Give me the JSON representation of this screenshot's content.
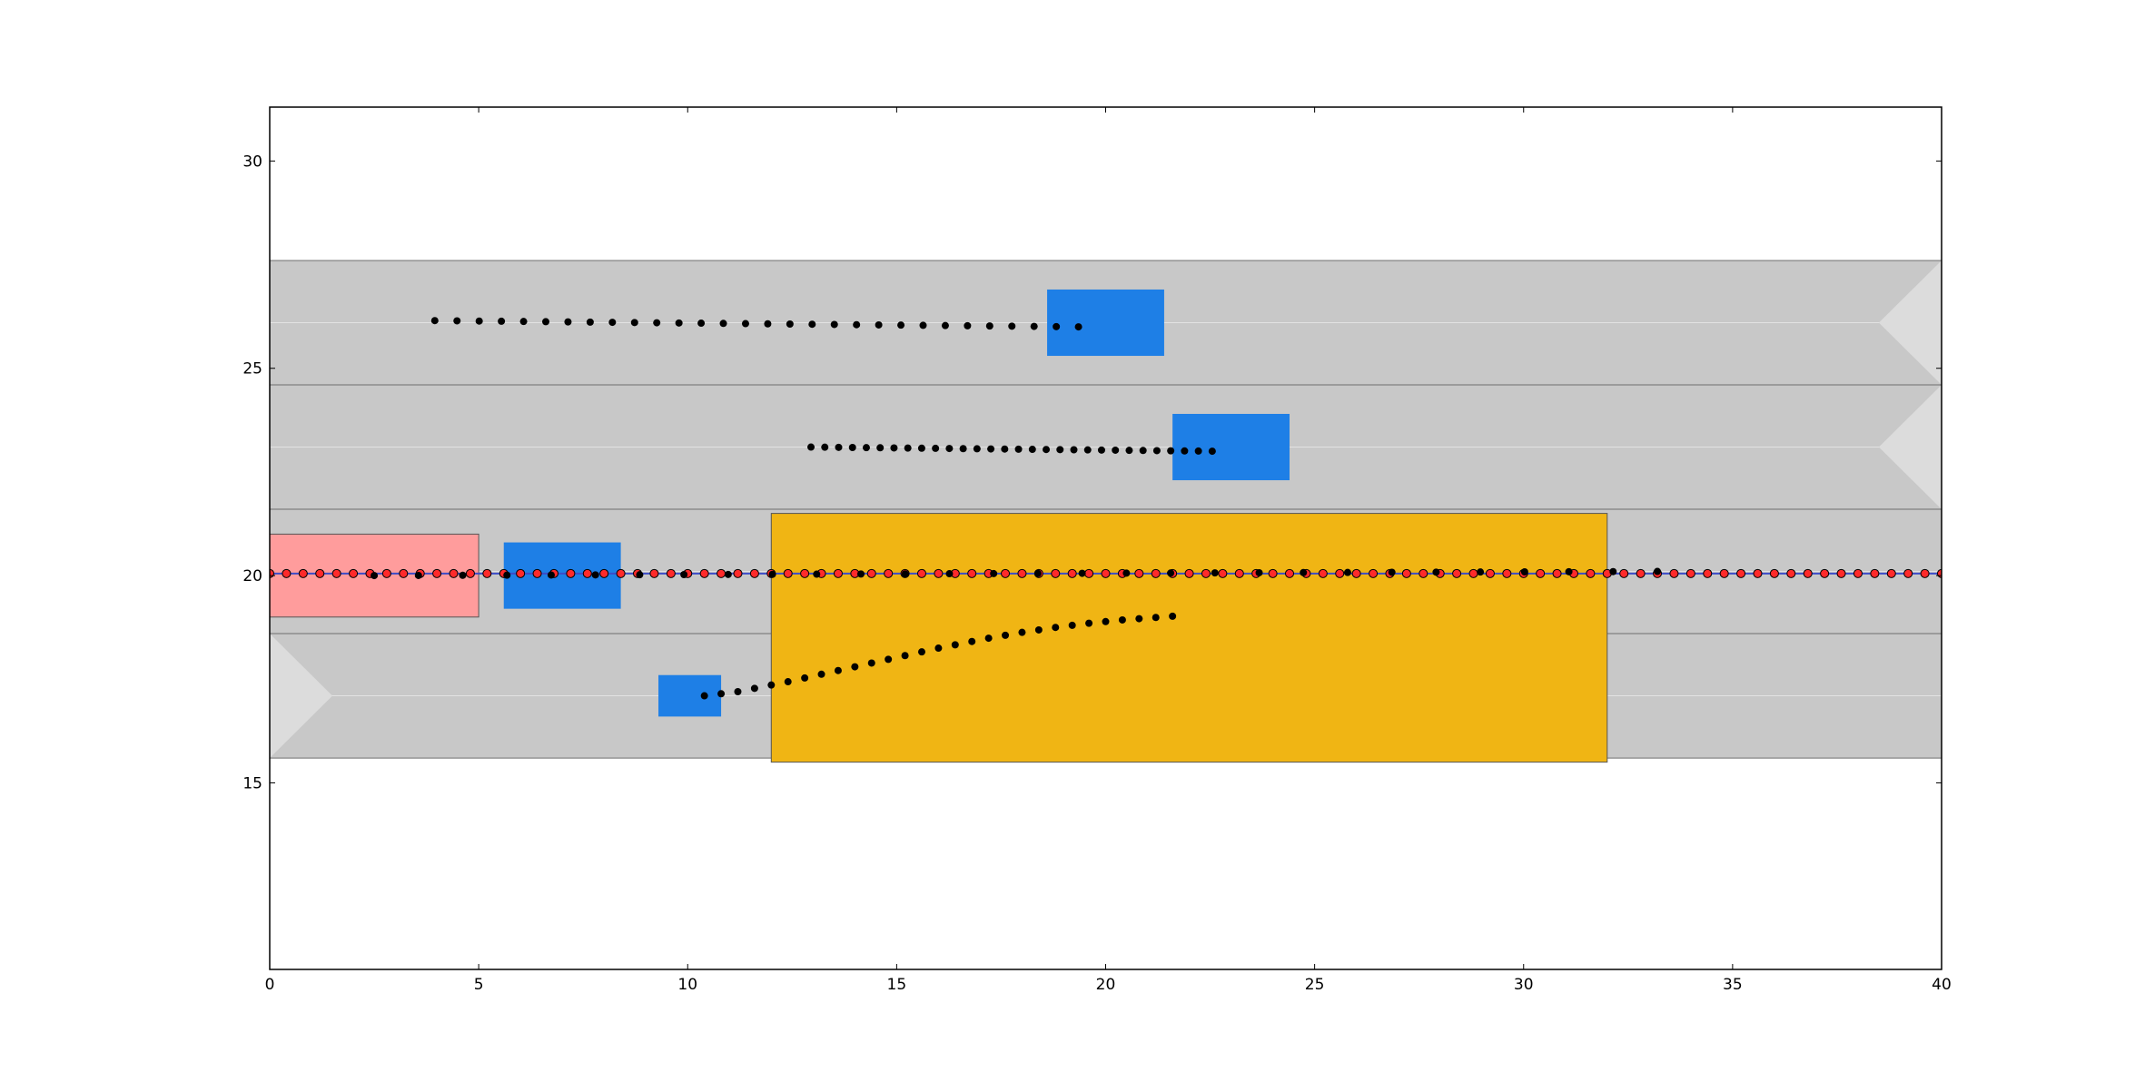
{
  "chart_data": {
    "type": "scatter",
    "title": "",
    "xlabel": "",
    "ylabel": "",
    "xlim": [
      0,
      40
    ],
    "ylim": [
      10.5,
      31.3
    ],
    "grid": false,
    "x_ticks": [
      0,
      5,
      10,
      15,
      20,
      25,
      30,
      35,
      40
    ],
    "y_ticks": [
      15,
      20,
      25,
      30
    ],
    "colors": {
      "road": "#c8c8c8",
      "lane_line": "#6e6e6e",
      "lane_center": "#e2e2e2",
      "arrow": "#dcdcdc",
      "ego_vehicle": "#ff9c9c",
      "other_vehicle": "#1e7fe6",
      "obstacle": "#f0b514",
      "ego_path": "#ff2a2a",
      "reference_line": "#3c4cc8",
      "prediction": "#000000"
    },
    "lanes": [
      {
        "y_low": 15.6,
        "y_high": 18.6,
        "center": 17.1,
        "arrow": "right",
        "arrow_x": 0
      },
      {
        "y_low": 18.6,
        "y_high": 21.6,
        "center": 20.1,
        "arrow": "none"
      },
      {
        "y_low": 21.6,
        "y_high": 24.6,
        "center": 23.1,
        "arrow": "left",
        "arrow_x": 40
      },
      {
        "y_low": 24.6,
        "y_high": 27.6,
        "center": 26.1,
        "arrow": "left",
        "arrow_x": 40
      }
    ],
    "ego_vehicle": {
      "x": [
        0,
        5
      ],
      "y": [
        19.0,
        21.0
      ]
    },
    "obstacle": {
      "x": [
        12.0,
        32.0
      ],
      "y": [
        15.5,
        21.5
      ]
    },
    "vehicles": [
      {
        "x": [
          18.6,
          21.4
        ],
        "y": [
          25.3,
          26.9
        ]
      },
      {
        "x": [
          21.6,
          24.4
        ],
        "y": [
          22.3,
          23.9
        ]
      },
      {
        "x": [
          5.6,
          8.4
        ],
        "y": [
          19.2,
          20.8
        ]
      },
      {
        "x": [
          9.3,
          10.8
        ],
        "y": [
          16.6,
          17.6
        ]
      }
    ],
    "reference_line": {
      "y": 20.05
    },
    "ego_path": {
      "x_start": 0,
      "x_end": 40,
      "step": 0.4,
      "y": 20.05
    },
    "predictions": [
      {
        "x_start": 3.95,
        "x_end": 19.35,
        "y_start": 26.15,
        "y_end": 26.0,
        "n": 30
      },
      {
        "x_start": 12.95,
        "x_end": 22.55,
        "y_start": 23.1,
        "y_end": 23.0,
        "n": 30
      },
      {
        "x_start": 2.5,
        "x_end": 33.2,
        "y_start": 20.0,
        "y_end": 20.1,
        "n": 30
      },
      {
        "x": [
          10.4,
          10.8,
          11.2,
          11.6,
          12.0,
          12.4,
          12.8,
          13.2,
          13.6,
          14.0,
          14.4,
          14.8,
          15.2,
          15.6,
          16.0,
          16.4,
          16.8,
          17.2,
          17.6,
          18.0,
          18.4,
          18.8,
          19.2,
          19.6,
          20.0,
          20.4,
          20.8,
          21.2,
          21.6
        ],
        "y": [
          17.1,
          17.15,
          17.2,
          17.28,
          17.36,
          17.44,
          17.53,
          17.62,
          17.71,
          17.8,
          17.89,
          17.98,
          18.07,
          18.16,
          18.25,
          18.33,
          18.41,
          18.49,
          18.56,
          18.63,
          18.69,
          18.75,
          18.8,
          18.85,
          18.89,
          18.93,
          18.96,
          18.99,
          19.02
        ]
      }
    ]
  }
}
